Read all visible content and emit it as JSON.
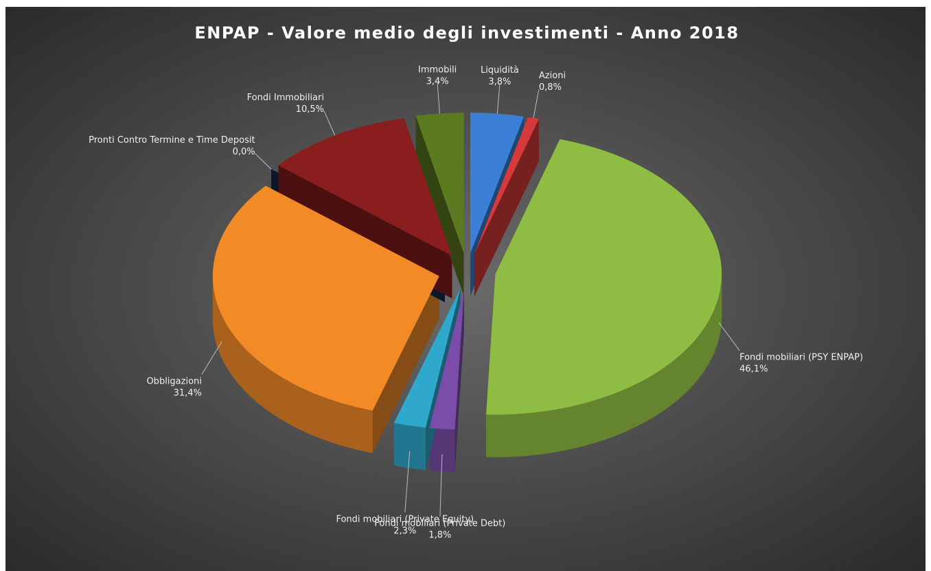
{
  "chart_data": {
    "type": "pie3d",
    "title": "ENPAP - Valore medio degli investimenti - Anno 2018",
    "categories": [
      "Liquidità",
      "Azioni",
      "Fondi mobiliari (PSY ENPAP)",
      "Fondi mobiliari (Private Debt)",
      "Fondi mobiliari (Private Equity)",
      "Obbligazioni",
      "Pronti Contro Termine e Time Deposit",
      "Fondi Immobiliari",
      "Immobili"
    ],
    "values": [
      3.8,
      0.8,
      46.1,
      1.8,
      2.3,
      31.4,
      0.0,
      10.5,
      3.4
    ],
    "value_labels": [
      "3,8%",
      "0,8%",
      "46,1%",
      "1,8%",
      "2,3%",
      "31,4%",
      "0,0%",
      "10,5%",
      "3,4%"
    ],
    "colors": [
      "#3b7fd6",
      "#d63a3a",
      "#8fbc42",
      "#7a4ea8",
      "#30a8cc",
      "#f28b26",
      "#14284c",
      "#8a1d1d",
      "#5c7b20"
    ]
  }
}
